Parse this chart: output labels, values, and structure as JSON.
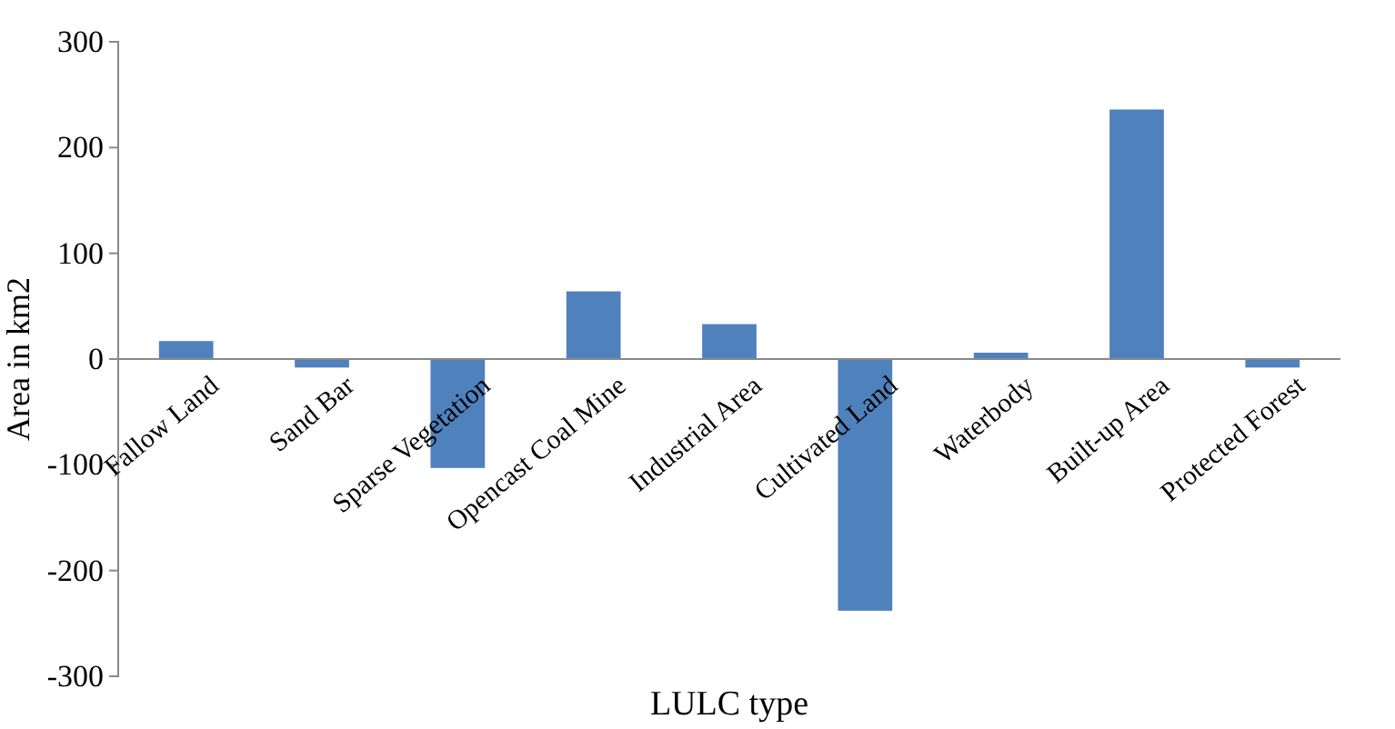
{
  "chart_data": {
    "type": "bar",
    "xlabel": "LULC type",
    "ylabel": "Area in km2",
    "categories": [
      "Fallow Land",
      "Sand Bar",
      "Sparse Vegetation",
      "Opencast Coal Mine",
      "Industrial Area",
      "Cultivated Land",
      "Waterbody",
      "Built-up Area",
      "Protected Forest"
    ],
    "values": [
      17,
      -8,
      -103,
      64,
      33,
      -238,
      6,
      236,
      -8
    ],
    "color": "#4f81bd",
    "ylim": [
      -300,
      300
    ],
    "yticks": [
      -300,
      -200,
      -100,
      0,
      100,
      200,
      300
    ],
    "grid": false
  }
}
